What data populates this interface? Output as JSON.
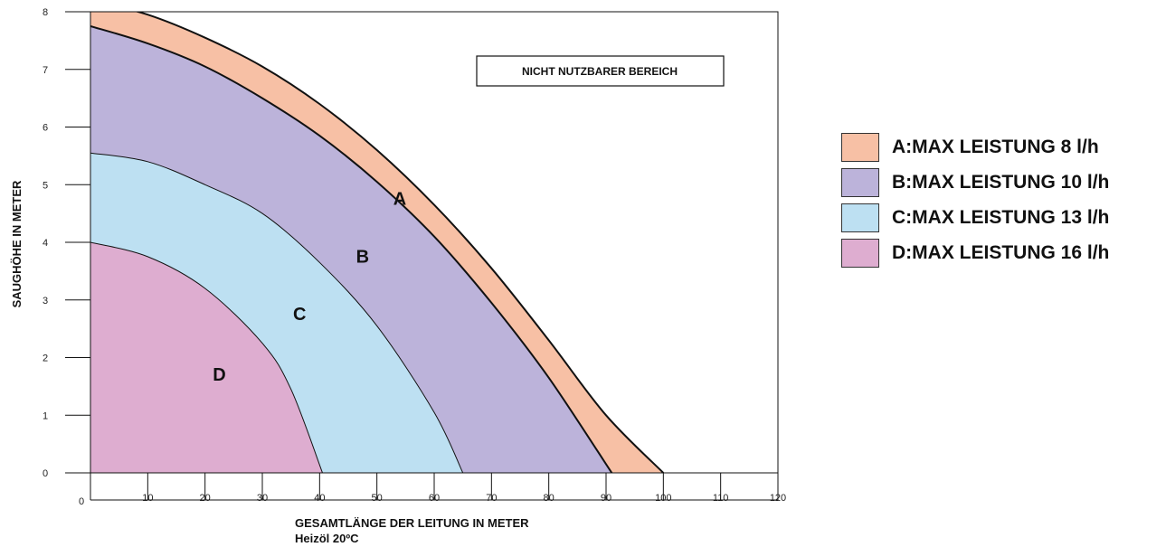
{
  "chart_data": {
    "type": "area",
    "title": "",
    "xlabel": "GESAMTLÄNGE DER LEITUNG IN METER",
    "xlabel_note": "Heizöl 20ºC",
    "ylabel": "SAUGHÖHE IN METER",
    "xlim": [
      0,
      120
    ],
    "ylim": [
      0,
      8
    ],
    "x_ticks": [
      0,
      10,
      20,
      30,
      40,
      50,
      60,
      70,
      80,
      90,
      100,
      110,
      120
    ],
    "y_ticks": [
      0,
      1,
      2,
      3,
      4,
      5,
      6,
      7,
      8
    ],
    "grid": false,
    "legend_position": "right",
    "annotation": "NICHT NUTZBARER BEREICH",
    "series": [
      {
        "name": "A:MAX LEISTUNG 8 l/h",
        "label": "A",
        "color": "#f7c0a5",
        "x": [
          0,
          10,
          20,
          30,
          40,
          50,
          60,
          70,
          80,
          90,
          100
        ],
        "y": [
          8.2,
          7.95,
          7.55,
          7.05,
          6.4,
          5.6,
          4.65,
          3.55,
          2.3,
          1.0,
          0
        ]
      },
      {
        "name": "B:MAX LEISTUNG 10 l/h",
        "label": "B",
        "color": "#bcb3da",
        "x": [
          0,
          10,
          20,
          30,
          40,
          50,
          60,
          70,
          80,
          91
        ],
        "y": [
          7.75,
          7.45,
          7.05,
          6.5,
          5.85,
          5.05,
          4.1,
          2.95,
          1.65,
          0
        ]
      },
      {
        "name": "C:MAX LEISTUNG 13 l/h",
        "label": "C",
        "color": "#bde0f2",
        "x": [
          0,
          10,
          20,
          30,
          40,
          50,
          60,
          65
        ],
        "y": [
          5.55,
          5.4,
          5.0,
          4.5,
          3.65,
          2.55,
          1.05,
          0
        ]
      },
      {
        "name": "D:MAX LEISTUNG 16 l/h",
        "label": "D",
        "color": "#deadd0",
        "x": [
          0,
          10,
          20,
          30,
          35,
          40.5
        ],
        "y": [
          4.0,
          3.75,
          3.2,
          2.25,
          1.45,
          0
        ]
      }
    ],
    "region_label_positions": [
      {
        "label": "A",
        "x": 54,
        "y": 4.65
      },
      {
        "label": "B",
        "x": 47.5,
        "y": 3.65
      },
      {
        "label": "C",
        "x": 36.5,
        "y": 2.65
      },
      {
        "label": "D",
        "x": 22.5,
        "y": 1.6
      }
    ]
  }
}
